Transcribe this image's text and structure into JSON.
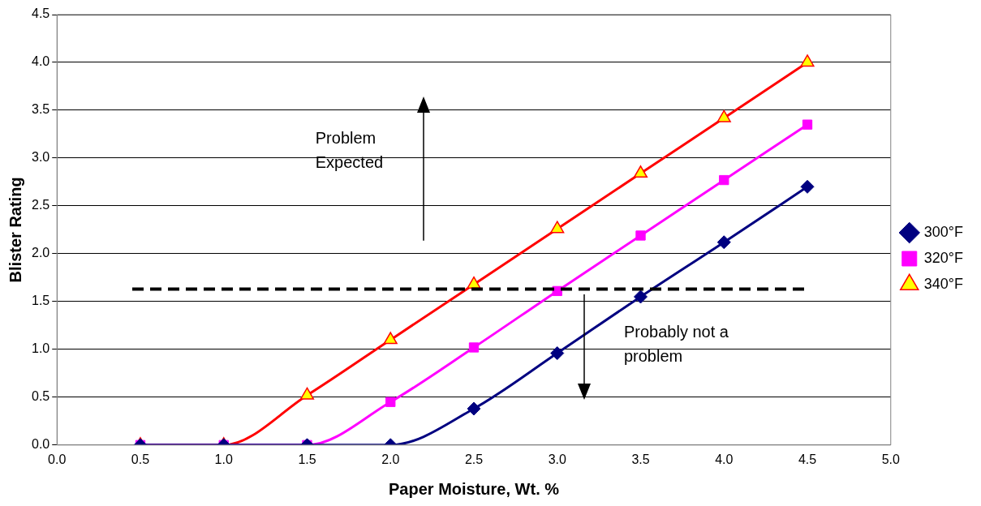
{
  "chart_data": {
    "type": "line",
    "xlabel": "Paper Moisture, Wt. %",
    "ylabel": "Blister Rating",
    "x": [
      0.5,
      1.0,
      1.5,
      2.0,
      2.5,
      3.0,
      3.5,
      4.0,
      4.5
    ],
    "series": [
      {
        "name": "300°F",
        "color": "#000080",
        "marker": "diamond",
        "values": [
          0,
          0,
          0,
          0,
          0.38,
          0.96,
          1.55,
          2.12,
          2.7
        ]
      },
      {
        "name": "320°F",
        "color": "#ff00ff",
        "marker": "square",
        "values": [
          0,
          0,
          0,
          0.45,
          1.02,
          1.61,
          2.19,
          2.77,
          3.35
        ]
      },
      {
        "name": "340°F",
        "color": "#ff0000",
        "marker": "triangle",
        "values": [
          0,
          0,
          0.52,
          1.1,
          1.68,
          2.26,
          2.84,
          3.42,
          4.0
        ]
      }
    ],
    "xlim": [
      0,
      5
    ],
    "xticks": [
      {
        "value": 0,
        "label": "0.0"
      },
      {
        "value": 0.5,
        "label": "0.5"
      },
      {
        "value": 1,
        "label": "1.0"
      },
      {
        "value": 1.5,
        "label": "1.5"
      },
      {
        "value": 2,
        "label": "2.0"
      },
      {
        "value": 2.5,
        "label": "2.5"
      },
      {
        "value": 3,
        "label": "3.0"
      },
      {
        "value": 3.5,
        "label": "3.5"
      },
      {
        "value": 4,
        "label": "4.0"
      },
      {
        "value": 4.5,
        "label": "4.5"
      },
      {
        "value": 5,
        "label": "5.0"
      }
    ],
    "ylim": [
      0,
      4.5
    ],
    "yticks": [
      {
        "value": 0,
        "label": "0.0"
      },
      {
        "value": 0.5,
        "label": "0.5"
      },
      {
        "value": 1,
        "label": "1.0"
      },
      {
        "value": 1.5,
        "label": "1.5"
      },
      {
        "value": 2,
        "label": "2.0"
      },
      {
        "value": 2.5,
        "label": "2.5"
      },
      {
        "value": 3,
        "label": "3.0"
      },
      {
        "value": 3.5,
        "label": "3.5"
      },
      {
        "value": 4,
        "label": "4.0"
      },
      {
        "value": 4.5,
        "label": "4.5"
      }
    ],
    "ref_lines": [
      {
        "axis": "y",
        "value": 1.63,
        "color": "#000000",
        "line_style": "dashed"
      }
    ],
    "annotations": [
      "Problem\nExpected",
      "Probably not a\nproblem"
    ],
    "grid": "y",
    "legend": "right",
    "line_style": "solid"
  }
}
